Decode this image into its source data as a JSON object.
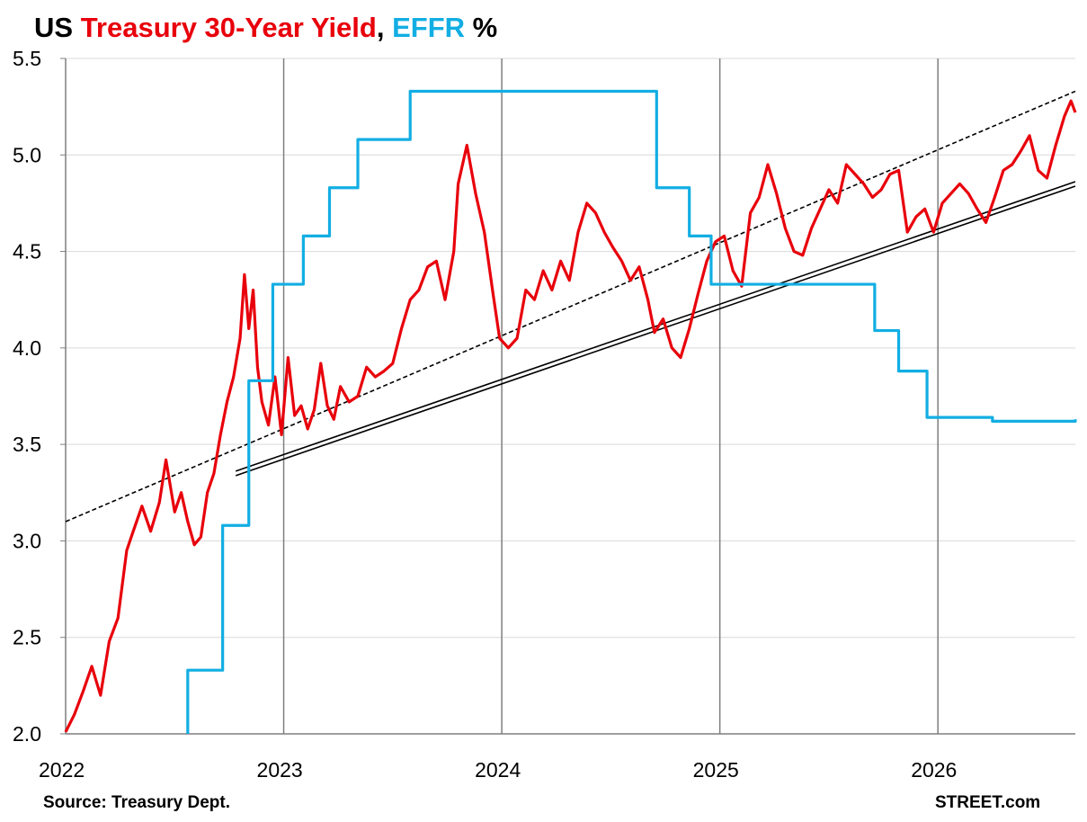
{
  "title": {
    "part1": "US ",
    "part2": "Treasury 30-Year Yield",
    "part3": ", ",
    "part4": "EFFR",
    "part5": " %",
    "color_treasury": "#E8000B",
    "color_effr": "#12AEE3"
  },
  "source": "Source: Treasury Dept.",
  "watermark": "STREET.com",
  "chart_data": {
    "type": "line",
    "ylim": [
      2.0,
      5.5
    ],
    "xlim": [
      2022.0,
      2026.63
    ],
    "y_ticks": [
      "2.0",
      "2.5",
      "3.0",
      "3.5",
      "4.0",
      "4.5",
      "5.0",
      "5.5"
    ],
    "x_ticks": [
      "2022",
      "2023",
      "2024",
      "2025",
      "2026"
    ],
    "grid": true,
    "series": [
      {
        "name": "Treasury 30-Year Yield",
        "color": "#E8000B",
        "x": [
          2022.0,
          2022.04,
          2022.08,
          2022.12,
          2022.16,
          2022.2,
          2022.24,
          2022.28,
          2022.31,
          2022.35,
          2022.39,
          2022.43,
          2022.46,
          2022.5,
          2022.53,
          2022.56,
          2022.59,
          2022.62,
          2022.65,
          2022.68,
          2022.71,
          2022.74,
          2022.77,
          2022.8,
          2022.82,
          2022.84,
          2022.86,
          2022.88,
          2022.9,
          2022.93,
          2022.96,
          2022.99,
          2023.02,
          2023.05,
          2023.08,
          2023.11,
          2023.14,
          2023.17,
          2023.2,
          2023.23,
          2023.26,
          2023.3,
          2023.34,
          2023.38,
          2023.42,
          2023.46,
          2023.5,
          2023.54,
          2023.58,
          2023.62,
          2023.66,
          2023.7,
          2023.74,
          2023.78,
          2023.8,
          2023.84,
          2023.88,
          2023.92,
          2023.96,
          2023.99,
          2024.03,
          2024.07,
          2024.11,
          2024.15,
          2024.19,
          2024.23,
          2024.27,
          2024.31,
          2024.35,
          2024.39,
          2024.43,
          2024.47,
          2024.51,
          2024.55,
          2024.59,
          2024.63,
          2024.67,
          2024.7,
          2024.74,
          2024.78,
          2024.82,
          2024.86,
          2024.9,
          2024.94,
          2024.98,
          2025.02,
          2025.06,
          2025.1,
          2025.14,
          2025.18,
          2025.22,
          2025.26,
          2025.3,
          2025.34,
          2025.38,
          2025.42,
          2025.46,
          2025.5,
          2025.54,
          2025.58,
          2025.62,
          2025.66,
          2025.7,
          2025.74,
          2025.78,
          2025.82,
          2025.86,
          2025.9,
          2025.94,
          2025.98,
          2026.02,
          2026.06,
          2026.1,
          2026.14,
          2026.18,
          2026.22,
          2026.26,
          2026.3,
          2026.34,
          2026.38,
          2026.42,
          2026.46,
          2026.5,
          2026.54,
          2026.58,
          2026.61,
          2026.63
        ],
        "values": [
          2.01,
          2.1,
          2.22,
          2.35,
          2.2,
          2.48,
          2.6,
          2.95,
          3.05,
          3.18,
          3.05,
          3.2,
          3.42,
          3.15,
          3.25,
          3.1,
          2.98,
          3.02,
          3.25,
          3.35,
          3.55,
          3.72,
          3.85,
          4.05,
          4.38,
          4.1,
          4.3,
          3.9,
          3.72,
          3.6,
          3.85,
          3.55,
          3.95,
          3.65,
          3.7,
          3.58,
          3.68,
          3.92,
          3.7,
          3.63,
          3.8,
          3.72,
          3.75,
          3.9,
          3.85,
          3.88,
          3.92,
          4.1,
          4.25,
          4.3,
          4.42,
          4.45,
          4.25,
          4.5,
          4.85,
          5.05,
          4.8,
          4.6,
          4.28,
          4.05,
          4.0,
          4.05,
          4.3,
          4.25,
          4.4,
          4.3,
          4.45,
          4.35,
          4.6,
          4.75,
          4.7,
          4.6,
          4.52,
          4.45,
          4.35,
          4.42,
          4.25,
          4.08,
          4.15,
          4.0,
          3.95,
          4.1,
          4.28,
          4.45,
          4.55,
          4.58,
          4.4,
          4.32,
          4.7,
          4.78,
          4.95,
          4.8,
          4.62,
          4.5,
          4.48,
          4.62,
          4.72,
          4.82,
          4.75,
          4.95,
          4.9,
          4.85,
          4.78,
          4.82,
          4.9,
          4.92,
          4.6,
          4.68,
          4.72,
          4.6,
          4.75,
          4.8,
          4.85,
          4.8,
          4.72,
          4.65,
          4.78,
          4.92,
          4.95,
          5.02,
          5.1,
          4.92,
          4.88,
          5.05,
          5.2,
          5.28,
          5.22
        ]
      },
      {
        "name": "EFFR",
        "color": "#12AEE3",
        "step": true,
        "x": [
          2022.56,
          2022.72,
          2022.84,
          2022.95,
          2023.09,
          2023.21,
          2023.34,
          2023.58,
          2024.71,
          2024.86,
          2024.96,
          2025.71,
          2025.82,
          2025.95,
          2026.25,
          2026.63
        ],
        "values": [
          2.33,
          3.08,
          3.83,
          4.33,
          4.58,
          4.83,
          5.08,
          5.33,
          4.83,
          4.58,
          4.33,
          4.09,
          3.88,
          3.64,
          3.62,
          3.63
        ]
      }
    ],
    "trendlines": [
      {
        "style": "dashed",
        "color": "#000000",
        "x": [
          2022.0,
          2026.63
        ],
        "values": [
          3.1,
          5.33
        ]
      },
      {
        "style": "double",
        "color": "#000000",
        "x": [
          2022.78,
          2026.63
        ],
        "values": [
          3.35,
          4.85
        ]
      }
    ]
  }
}
